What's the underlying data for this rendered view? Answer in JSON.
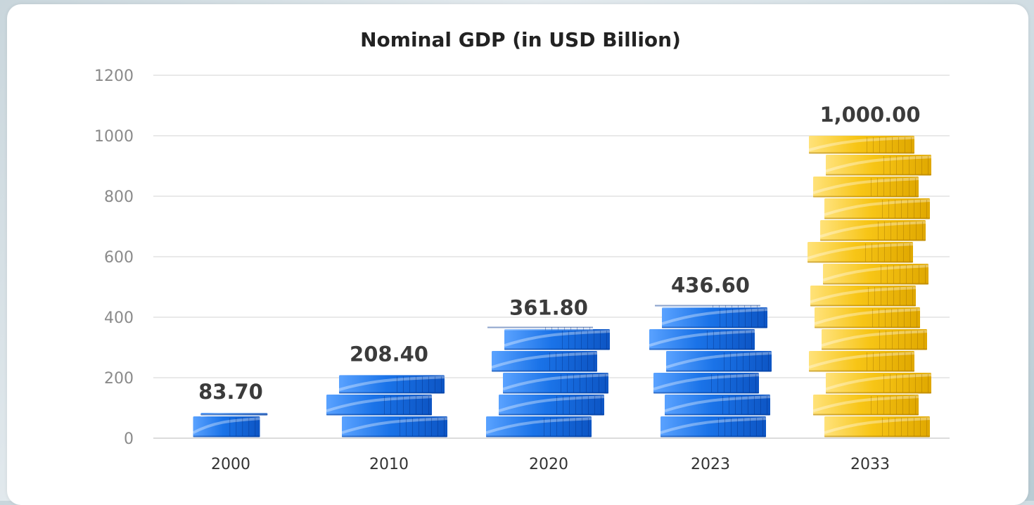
{
  "chart_data": {
    "type": "bar",
    "title": "Nominal GDP (in USD Billion)",
    "categories": [
      "2000",
      "2010",
      "2020",
      "2023",
      "2033"
    ],
    "values": [
      83.7,
      208.4,
      361.8,
      436.6,
      1000.0
    ],
    "value_labels": [
      "83.70",
      "208.40",
      "361.80",
      "436.60",
      "1,000.00"
    ],
    "ylim": [
      0,
      1200
    ],
    "yticks": [
      0,
      200,
      400,
      600,
      800,
      1000,
      1200
    ],
    "grid": true,
    "xlabel": "",
    "ylabel": ""
  },
  "colors": {
    "coin_blue": "#1a73e8",
    "coin_gold": "#f5c518"
  },
  "icons": {
    "bar_style": "stacked-coins"
  }
}
